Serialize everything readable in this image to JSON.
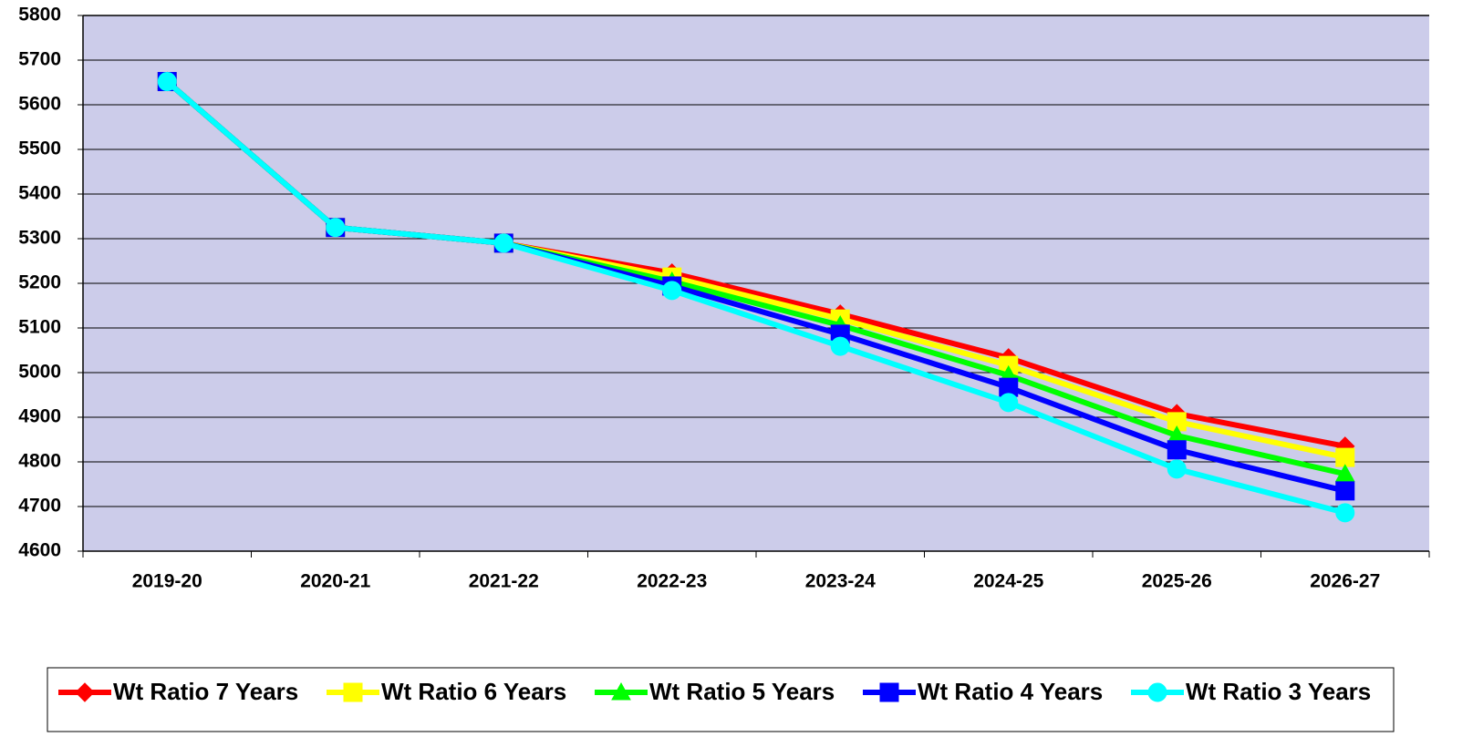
{
  "chart_data": {
    "type": "line",
    "categories": [
      "2019-20",
      "2020-21",
      "2021-22",
      "2022-23",
      "2023-24",
      "2024-25",
      "2025-26",
      "2026-27"
    ],
    "series": [
      {
        "name": "Wt Ratio 7 Years",
        "color": "#ff0000",
        "marker": "diamond",
        "values": [
          5652,
          5325,
          5290,
          5223,
          5131,
          5033,
          4908,
          4835
        ]
      },
      {
        "name": "Wt Ratio 6 Years",
        "color": "#ffff00",
        "marker": "square",
        "values": [
          5652,
          5325,
          5290,
          5214,
          5120,
          5016,
          4890,
          4810
        ]
      },
      {
        "name": "Wt Ratio 5 Years",
        "color": "#00ff00",
        "marker": "triangle",
        "values": [
          5652,
          5325,
          5290,
          5204,
          5106,
          4994,
          4859,
          4773
        ]
      },
      {
        "name": "Wt Ratio 4 Years",
        "color": "#0000ff",
        "marker": "square",
        "values": [
          5652,
          5325,
          5290,
          5194,
          5086,
          4967,
          4827,
          4735
        ]
      },
      {
        "name": "Wt Ratio 3 Years",
        "color": "#00ffff",
        "marker": "circle",
        "values": [
          5652,
          5325,
          5290,
          5184,
          5059,
          4933,
          4784,
          4686
        ]
      }
    ],
    "ylim": [
      4600,
      5800
    ],
    "yticks": [
      4600,
      4700,
      4800,
      4900,
      5000,
      5100,
      5200,
      5300,
      5400,
      5500,
      5600,
      5700,
      5800
    ],
    "grid": true,
    "legend": "bottom"
  }
}
